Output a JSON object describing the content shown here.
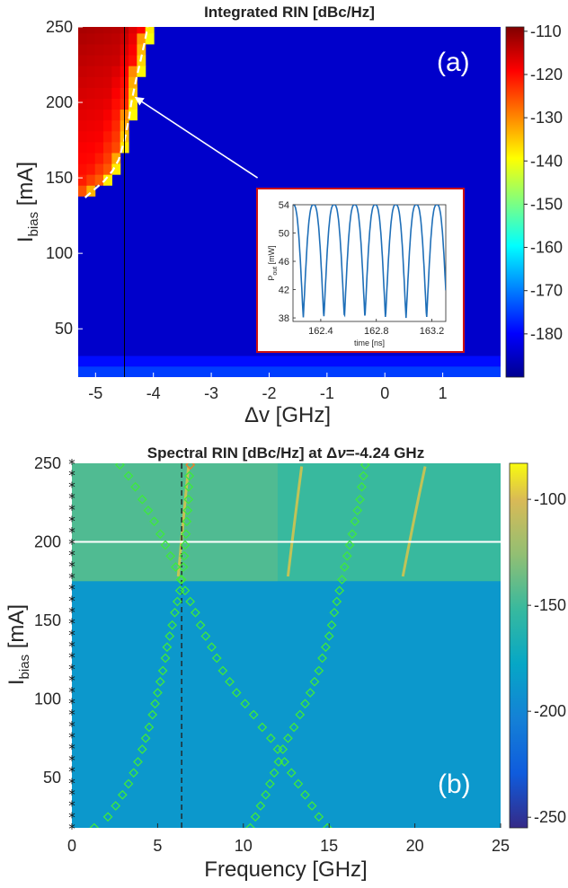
{
  "chart_data": [
    {
      "type": "heatmap",
      "panel_label": "(a)",
      "title": "Integrated RIN [dBc/Hz]",
      "xlabel": "Δv [GHz]",
      "ylabel_main": "I",
      "ylabel_sub": "bias",
      "ylabel_unit": " [mA]",
      "xlim": [
        -5.3,
        2.0
      ],
      "ylim": [
        18,
        250
      ],
      "xticks": [
        -5,
        -4,
        -3,
        -2,
        -1,
        0,
        1
      ],
      "xtick_labels": [
        "-5",
        "-4",
        "-3",
        "-2",
        "-1",
        "0",
        "1"
      ],
      "yticks": [
        50,
        100,
        150,
        200,
        250
      ],
      "ytick_labels": [
        "50",
        "100",
        "150",
        "200",
        "250"
      ],
      "colorbar": {
        "colormap": "jet",
        "range": [
          -190,
          -109
        ],
        "ticks": [
          -110,
          -120,
          -130,
          -140,
          -150,
          -160,
          -170,
          -180
        ],
        "tick_labels": [
          "-110",
          "-120",
          "-130",
          "-140",
          "-150",
          "-160",
          "-170",
          "-180"
        ]
      },
      "background_value": -184,
      "boundary_dashed": {
        "color": "#ffffff",
        "points": [
          [
            -5.18,
            137
          ],
          [
            -5.0,
            143
          ],
          [
            -4.85,
            148
          ],
          [
            -4.7,
            155
          ],
          [
            -4.6,
            162
          ],
          [
            -4.5,
            175
          ],
          [
            -4.42,
            190
          ],
          [
            -4.38,
            200
          ],
          [
            -4.3,
            215
          ],
          [
            -4.22,
            228
          ],
          [
            -4.15,
            240
          ],
          [
            -4.1,
            250
          ]
        ]
      },
      "vertical_line": {
        "x": -4.5,
        "color": "#000000"
      },
      "arrow": {
        "from": [
          -2.2,
          150
        ],
        "to": [
          -4.3,
          203
        ],
        "color": "#ffffff"
      },
      "inset": {
        "xlabel": "time [ns]",
        "ylabel_main": "P",
        "ylabel_sub": "out",
        "ylabel_unit": " [mW]",
        "xlim": [
          162.2,
          163.3
        ],
        "ylim": [
          37.5,
          54
        ],
        "xticks": [
          162.4,
          162.8,
          163.2
        ],
        "xtick_labels": [
          "162.4",
          "162.8",
          "163.2"
        ],
        "yticks": [
          38,
          42,
          46,
          50,
          54
        ],
        "ytick_labels": [
          "38",
          "42",
          "46",
          "50",
          "54"
        ],
        "signal": {
          "period_ns": 0.148,
          "min_mw": 38,
          "max_mw": 54
        },
        "border_color": "#cc1111",
        "line_color": "#1f6fb8"
      }
    },
    {
      "type": "heatmap",
      "panel_label": "(b)",
      "title_main": "Spectral RIN [dBc/Hz] at Δ",
      "title_nu": "ν",
      "title_tail": "=-4.24 GHz",
      "xlabel": "Frequency [GHz]",
      "ylabel_main": "I",
      "ylabel_sub": "bias",
      "ylabel_unit": " [mA]",
      "xlim": [
        0,
        25
      ],
      "ylim": [
        18,
        250
      ],
      "xticks": [
        0,
        5,
        10,
        15,
        20,
        25
      ],
      "xtick_labels": [
        "0",
        "5",
        "10",
        "15",
        "20",
        "25"
      ],
      "yticks": [
        50,
        100,
        150,
        200,
        250
      ],
      "ytick_labels": [
        "50",
        "100",
        "150",
        "200",
        "250"
      ],
      "colorbar": {
        "colormap": "parula",
        "range": [
          -255,
          -83
        ],
        "ticks": [
          -100,
          -150,
          -200,
          -250
        ],
        "tick_labels": [
          "-100",
          "-150",
          "-200",
          "-250"
        ]
      },
      "low_current_value": -188,
      "high_current_value": -152,
      "transition_current": 175,
      "white_line_current": 200,
      "dashed_frequency": 6.4,
      "markers_increasing_freq": [
        [
          1.3,
          18
        ],
        [
          2.1,
          25
        ],
        [
          2.55,
          32
        ],
        [
          2.95,
          39
        ],
        [
          3.3,
          46
        ],
        [
          3.6,
          53
        ],
        [
          3.85,
          60
        ],
        [
          4.1,
          68
        ],
        [
          4.3,
          75
        ],
        [
          4.5,
          82
        ],
        [
          4.7,
          90
        ],
        [
          4.85,
          97
        ],
        [
          5.0,
          104
        ],
        [
          5.15,
          111
        ],
        [
          5.3,
          118
        ],
        [
          5.45,
          126
        ],
        [
          5.55,
          133
        ],
        [
          5.7,
          140
        ],
        [
          5.85,
          147
        ],
        [
          6.0,
          155
        ],
        [
          6.15,
          162
        ],
        [
          6.3,
          169
        ],
        [
          6.4,
          176
        ],
        [
          6.5,
          184
        ],
        [
          6.55,
          191
        ],
        [
          6.6,
          198
        ],
        [
          6.65,
          205
        ],
        [
          6.7,
          213
        ],
        [
          6.75,
          220
        ],
        [
          6.8,
          227
        ],
        [
          6.8,
          235
        ],
        [
          6.85,
          242
        ],
        [
          6.9,
          249
        ]
      ],
      "markers_decreasing_freq": [
        [
          14.9,
          18
        ],
        [
          14.4,
          25
        ],
        [
          14.0,
          32
        ],
        [
          13.6,
          39
        ],
        [
          13.2,
          46
        ],
        [
          12.8,
          53
        ],
        [
          12.4,
          60
        ],
        [
          12.0,
          68
        ],
        [
          11.6,
          75
        ],
        [
          11.1,
          82
        ],
        [
          10.6,
          90
        ],
        [
          10.1,
          97
        ],
        [
          9.6,
          104
        ],
        [
          9.2,
          111
        ],
        [
          8.8,
          118
        ],
        [
          8.45,
          126
        ],
        [
          8.15,
          133
        ],
        [
          7.8,
          140
        ],
        [
          7.5,
          147
        ],
        [
          7.2,
          155
        ],
        [
          6.9,
          162
        ],
        [
          6.6,
          169
        ],
        [
          6.35,
          176
        ],
        [
          6.05,
          184
        ],
        [
          5.75,
          191
        ],
        [
          5.45,
          198
        ],
        [
          5.15,
          205
        ],
        [
          4.8,
          213
        ],
        [
          4.45,
          220
        ],
        [
          4.1,
          227
        ],
        [
          3.7,
          235
        ],
        [
          3.3,
          242
        ],
        [
          2.8,
          249
        ]
      ],
      "markers_right_branch": [
        [
          10.4,
          18
        ],
        [
          10.7,
          25
        ],
        [
          11.0,
          32
        ],
        [
          11.3,
          39
        ],
        [
          11.55,
          46
        ],
        [
          11.8,
          53
        ],
        [
          12.05,
          60
        ],
        [
          12.3,
          68
        ],
        [
          12.6,
          75
        ],
        [
          12.95,
          82
        ],
        [
          13.3,
          90
        ],
        [
          13.6,
          97
        ],
        [
          13.9,
          104
        ],
        [
          14.15,
          111
        ],
        [
          14.4,
          118
        ],
        [
          14.6,
          126
        ],
        [
          14.8,
          133
        ],
        [
          15.0,
          140
        ],
        [
          15.15,
          147
        ],
        [
          15.3,
          155
        ],
        [
          15.45,
          162
        ],
        [
          15.6,
          169
        ],
        [
          15.75,
          176
        ],
        [
          15.9,
          184
        ],
        [
          16.05,
          191
        ],
        [
          16.2,
          198
        ],
        [
          16.35,
          205
        ],
        [
          16.5,
          213
        ],
        [
          16.65,
          220
        ],
        [
          16.8,
          227
        ],
        [
          16.9,
          235
        ],
        [
          17.0,
          242
        ],
        [
          17.1,
          249
        ]
      ],
      "streaks": [
        [
          6.2,
          6.8
        ],
        [
          12.6,
          13.4
        ],
        [
          19.3,
          20.6
        ]
      ],
      "edge_markers": "*"
    }
  ]
}
